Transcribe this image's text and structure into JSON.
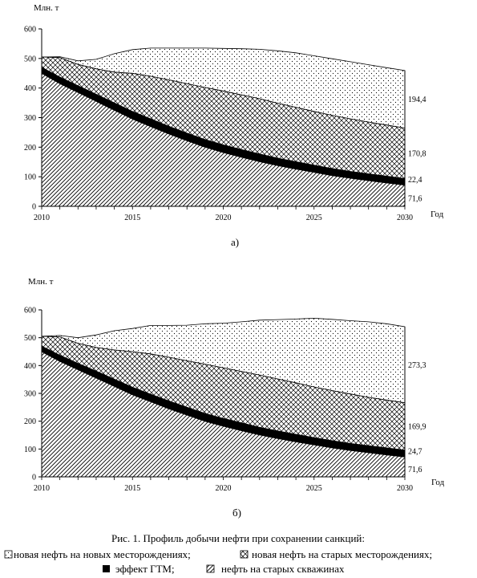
{
  "caption": {
    "title": "Рис. 1. Профиль добычи нефти при сохранении санкций:",
    "legend_line1": [
      "новая нефть на новых месторождениях;",
      "новая нефть на старых месторождениях;"
    ],
    "legend_line2": [
      "эффект ГТМ;",
      "нефть на старых скважинах"
    ]
  },
  "chart_data": [
    {
      "type": "area",
      "stacked": true,
      "panel_label": "а)",
      "ylabel": "Млн. т",
      "xlabel": "Год",
      "ylim": [
        0,
        600
      ],
      "yticks": [
        0,
        100,
        200,
        300,
        400,
        500,
        600
      ],
      "xticks": [
        2010,
        2015,
        2020,
        2025,
        2030
      ],
      "x": [
        2010,
        2011,
        2012,
        2013,
        2014,
        2015,
        2016,
        2017,
        2018,
        2019,
        2020,
        2021,
        2022,
        2023,
        2024,
        2025,
        2026,
        2027,
        2028,
        2029,
        2030
      ],
      "series": [
        {
          "name": "нефть на старых скважинах",
          "pattern": "diagonal",
          "values": [
            450,
            415,
            385,
            355,
            325,
            295,
            270,
            245,
            222,
            200,
            182,
            166,
            151,
            138,
            126,
            115,
            104,
            95,
            87,
            79,
            71.6
          ]
        },
        {
          "name": "эффект ГТМ",
          "pattern": "solid",
          "values": [
            20,
            22,
            23,
            24,
            25,
            26,
            26,
            26,
            26,
            26,
            26,
            26,
            26,
            25,
            25,
            24,
            24,
            23,
            23,
            23,
            22.4
          ]
        },
        {
          "name": "новая нефть на старых месторождениях",
          "pattern": "crosshatch",
          "values": [
            35,
            66,
            72,
            86,
            104,
            129,
            144,
            157,
            167,
            176,
            182,
            185,
            187,
            186,
            184,
            182,
            180,
            178,
            175,
            173,
            170.8
          ]
        },
        {
          "name": "новая нефть на новых месторождениях",
          "pattern": "dots",
          "values": [
            0,
            3,
            12,
            32,
            62,
            80,
            95,
            107,
            120,
            133,
            144,
            156,
            167,
            177,
            184,
            188,
            191,
            193,
            194,
            194,
            194.4
          ]
        }
      ],
      "end_labels": [
        "194,4",
        "170,8",
        "22,4",
        "71,6"
      ]
    },
    {
      "type": "area",
      "stacked": true,
      "panel_label": "б)",
      "ylabel": "Млн. т",
      "xlabel": "Год",
      "ylim": [
        0,
        600
      ],
      "yticks": [
        0,
        100,
        200,
        300,
        400,
        500,
        600
      ],
      "xticks": [
        2010,
        2015,
        2020,
        2025,
        2030
      ],
      "x": [
        2010,
        2011,
        2012,
        2013,
        2014,
        2015,
        2016,
        2017,
        2018,
        2019,
        2020,
        2021,
        2022,
        2023,
        2024,
        2025,
        2026,
        2027,
        2028,
        2029,
        2030
      ],
      "series": [
        {
          "name": "нефть на старых скважинах",
          "pattern": "diagonal",
          "values": [
            450,
            415,
            385,
            355,
            325,
            295,
            270,
            245,
            222,
            200,
            182,
            166,
            151,
            138,
            126,
            115,
            104,
            95,
            87,
            79,
            71.6
          ]
        },
        {
          "name": "эффект ГТМ",
          "pattern": "solid",
          "values": [
            20,
            22,
            23,
            25,
            26,
            27,
            27,
            28,
            28,
            28,
            28,
            28,
            27,
            27,
            27,
            26,
            26,
            25,
            25,
            25,
            24.7
          ]
        },
        {
          "name": "новая нефть на старых месторождениях",
          "pattern": "crosshatch",
          "values": [
            35,
            66,
            72,
            85,
            105,
            128,
            145,
            157,
            167,
            177,
            182,
            185,
            188,
            187,
            185,
            182,
            180,
            178,
            174,
            172,
            169.9
          ]
        },
        {
          "name": "новая нефть на новых месторождениях",
          "pattern": "dots",
          "values": [
            0,
            5,
            20,
            45,
            69,
            83,
            102,
            114,
            128,
            145,
            160,
            178,
            197,
            213,
            229,
            247,
            256,
            263,
            271,
            274,
            273.3
          ]
        }
      ],
      "end_labels": [
        "273,3",
        "169,9",
        "24,7",
        "71,6"
      ]
    }
  ]
}
